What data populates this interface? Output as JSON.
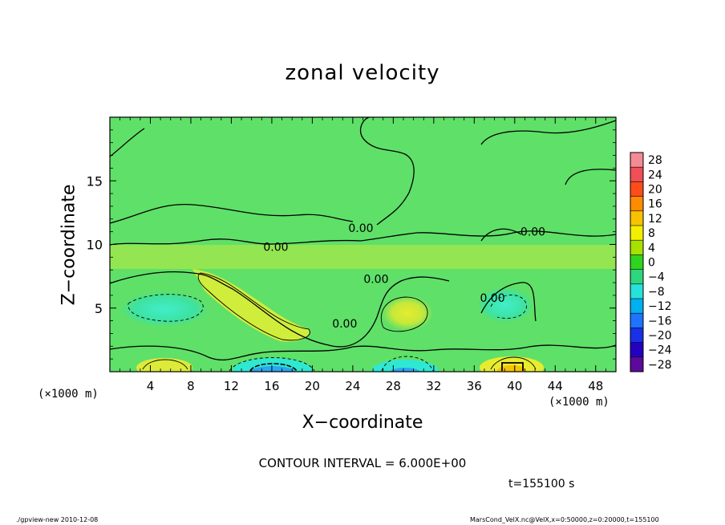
{
  "chart_data": {
    "type": "heatmap",
    "title": "zonal velocity",
    "xlabel": "X−coordinate",
    "ylabel": "Z−coordinate",
    "x_unit_label_left": "(×1000 m)",
    "x_unit_label_right": "(×1000 m)",
    "xlim": [
      0,
      50
    ],
    "ylim": [
      0,
      20
    ],
    "x_ticks": [
      4,
      8,
      12,
      16,
      20,
      24,
      28,
      32,
      36,
      40,
      44,
      48
    ],
    "y_ticks": [
      5,
      10,
      15
    ],
    "colorbar": {
      "levels": [
        28,
        24,
        20,
        16,
        12,
        8,
        4,
        0,
        -4,
        -8,
        -12,
        -16,
        -20,
        -24,
        -28
      ],
      "labels": [
        "28",
        "24",
        "20",
        "16",
        "12",
        "8",
        "4",
        "0",
        "−4",
        "−8",
        "−12",
        "−16",
        "−20",
        "−24",
        "−28"
      ],
      "colors": [
        "#f48a94",
        "#f04f55",
        "#ff4d1a",
        "#ff8c00",
        "#f7c300",
        "#f2f000",
        "#a8e000",
        "#2fd41c",
        "#2ed680",
        "#27e2d8",
        "#00b0f0",
        "#1e73ff",
        "#1a2fe8",
        "#2400c0",
        "#5d0a9c"
      ]
    },
    "contour_labels": [
      {
        "text": "0.00",
        "x": 24.8,
        "y": 11.3
      },
      {
        "text": "0.00",
        "x": 41.8,
        "y": 11.0
      },
      {
        "text": "0.00",
        "x": 16.4,
        "y": 9.8
      },
      {
        "text": "0.00",
        "x": 26.3,
        "y": 7.3
      },
      {
        "text": "0.00",
        "x": 37.8,
        "y": 5.8
      },
      {
        "text": "0.00",
        "x": 23.2,
        "y": 3.8
      }
    ],
    "contour_interval_text": "CONTOUR INTERVAL = 6.000E+00",
    "time_text": "t=155100 s"
  },
  "footer": {
    "left": "./gpview-new  2010-12-08",
    "right": "MarsCond_VelX.nc@VelX,x=0:50000,z=0:20000,t=155100"
  }
}
